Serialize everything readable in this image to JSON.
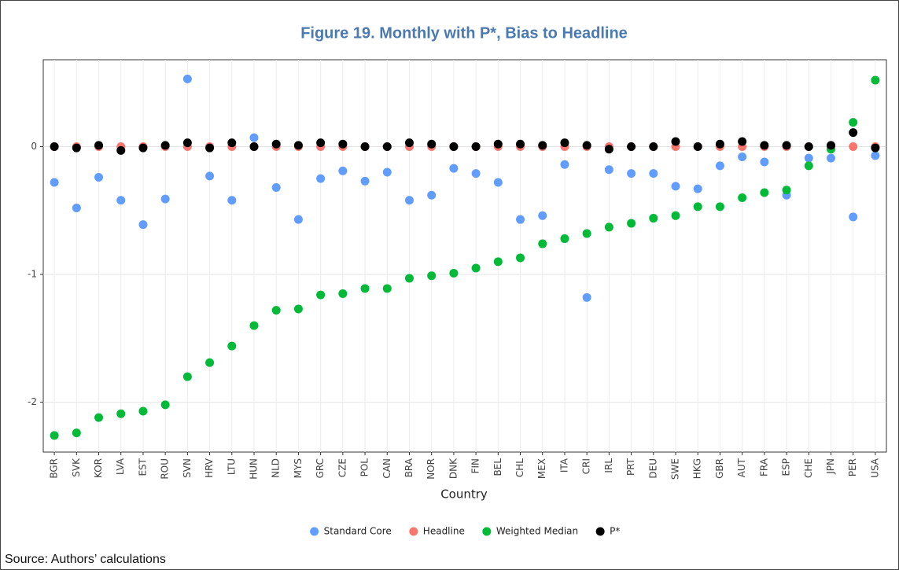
{
  "chart_data": {
    "type": "scatter",
    "title": "Figure 19. Monthly with P*, Bias to Headline",
    "x_label": "Country",
    "categories": [
      "BGR",
      "SVK",
      "KOR",
      "LVA",
      "EST",
      "ROU",
      "SVN",
      "HRV",
      "LTU",
      "HUN",
      "NLD",
      "MYS",
      "GRC",
      "CZE",
      "POL",
      "CAN",
      "BRA",
      "NOR",
      "DNK",
      "FIN",
      "BEL",
      "CHL",
      "MEX",
      "ITA",
      "CRI",
      "IRL",
      "PRT",
      "DEU",
      "SWE",
      "HKG",
      "GBR",
      "AUT",
      "FRA",
      "ESP",
      "CHE",
      "JPN",
      "PER",
      "USA"
    ],
    "series": [
      {
        "name": "Standard Core",
        "color": "#619cff",
        "values": [
          -0.28,
          -0.48,
          -0.24,
          -0.42,
          -0.61,
          -0.41,
          0.53,
          -0.23,
          -0.42,
          0.07,
          -0.32,
          -0.57,
          -0.25,
          -0.19,
          -0.27,
          -0.2,
          -0.42,
          -0.38,
          -0.17,
          -0.21,
          -0.28,
          -0.57,
          -0.54,
          -0.14,
          -1.18,
          -0.18,
          -0.21,
          -0.21,
          -0.31,
          -0.33,
          -0.15,
          -0.08,
          -0.12,
          -0.38,
          -0.09,
          -0.09,
          -0.55,
          -0.07
        ]
      },
      {
        "name": "Headline",
        "color": "#f8766d",
        "values": [
          0,
          0,
          0,
          0,
          0,
          0,
          0,
          0,
          0,
          0,
          0,
          0,
          0,
          0,
          0,
          0,
          0,
          0,
          0,
          0,
          0,
          0,
          0,
          0,
          0,
          0,
          0,
          0,
          0,
          0,
          0,
          0,
          0,
          0,
          0,
          0,
          0,
          0
        ]
      },
      {
        "name": "Weighted Median",
        "color": "#00ba38",
        "values": [
          -2.26,
          -2.24,
          -2.12,
          -2.09,
          -2.07,
          -2.02,
          -1.8,
          -1.69,
          -1.56,
          -1.4,
          -1.28,
          -1.27,
          -1.16,
          -1.15,
          -1.11,
          -1.11,
          -1.03,
          -1.01,
          -0.99,
          -0.95,
          -0.9,
          -0.87,
          -0.76,
          -0.72,
          -0.68,
          -0.63,
          -0.6,
          -0.56,
          -0.54,
          -0.47,
          -0.47,
          -0.4,
          -0.36,
          -0.34,
          -0.15,
          -0.02,
          0.19,
          0.52
        ]
      },
      {
        "name": "P*",
        "color": "#000000",
        "values": [
          0,
          -0.01,
          0.01,
          -0.03,
          -0.01,
          0.01,
          0.03,
          -0.01,
          0.03,
          0,
          0.02,
          0.01,
          0.03,
          0.02,
          0,
          0,
          0.03,
          0.02,
          0,
          0,
          0.02,
          0.02,
          0.01,
          0.03,
          0.01,
          -0.02,
          0,
          0,
          0.04,
          0,
          0.02,
          0.04,
          0.01,
          0.01,
          0,
          0.01,
          0.11,
          -0.01
        ]
      }
    ],
    "ylim": [
      -2.39,
      0.68
    ],
    "yticks": [
      -2,
      -1,
      0
    ],
    "grid": true,
    "legend": "bottom",
    "source": "Source: Authors’ calculations"
  }
}
